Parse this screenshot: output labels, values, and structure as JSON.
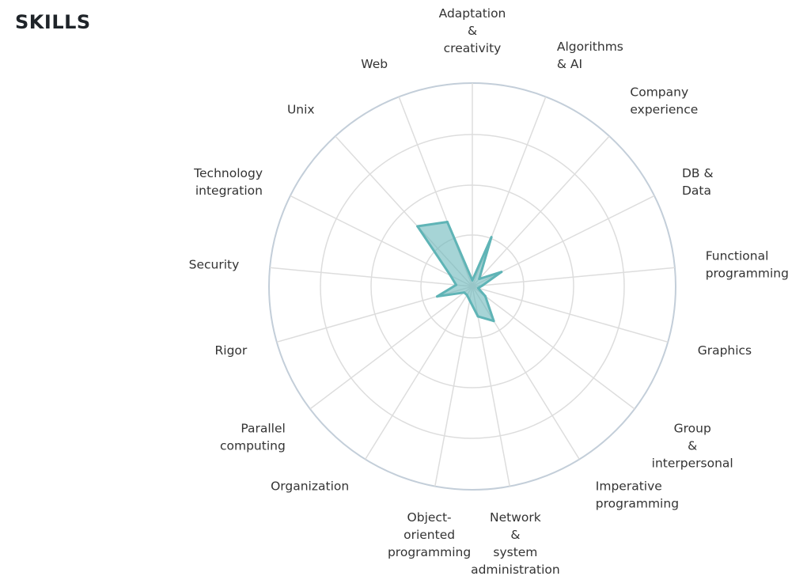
{
  "page": {
    "title": "SKILLS"
  },
  "chart_data": {
    "type": "radar",
    "title": "SKILLS",
    "categories": [
      "Adaptation & creativity",
      "Algorithms & AI",
      "Company experience",
      "DB & Data",
      "Functional programming",
      "Graphics",
      "Group & interpersonal",
      "Imperative programming",
      "Network & system administration",
      "Object-oriented programming",
      "Organization",
      "Parallel computing",
      "Rigor",
      "Security",
      "Technology integration",
      "Unix",
      "Web"
    ],
    "series": [
      {
        "values": [
          0.03,
          0.26,
          0.05,
          0.16,
          0.05,
          0.03,
          0.08,
          0.2,
          0.15,
          0.07,
          0.05,
          0.05,
          0.18,
          0.08,
          0.12,
          0.4,
          0.34
        ]
      }
    ],
    "range": [
      0,
      1
    ],
    "rings": 4,
    "grid": true,
    "legend": "none",
    "colors": {
      "series_stroke": "#5fb4b6",
      "series_fill": "#6bb8ba",
      "grid": "#dddddd",
      "outer_ring": "#c3ced9",
      "label": "#333333",
      "title": "#1f2429"
    }
  }
}
